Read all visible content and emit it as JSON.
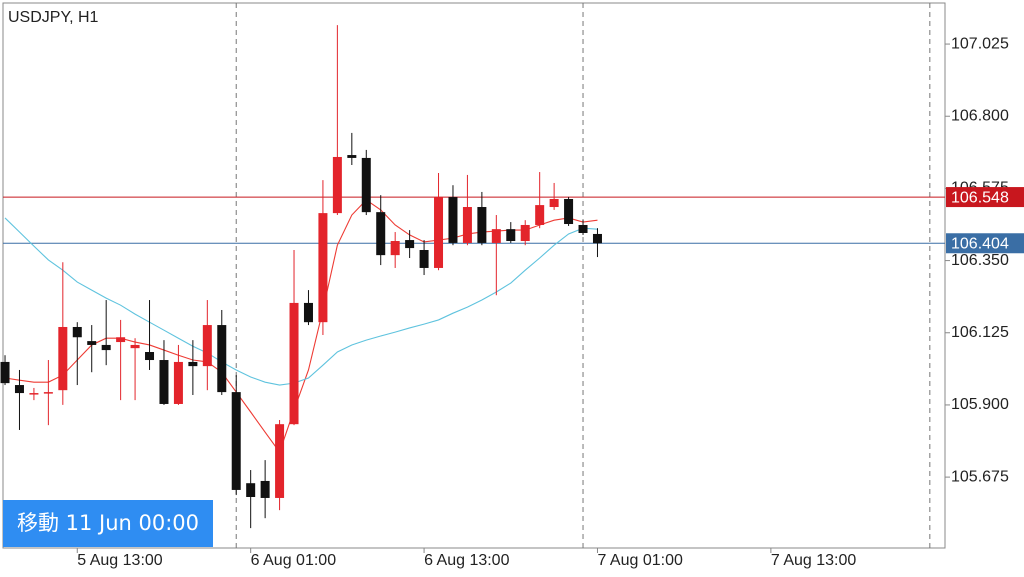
{
  "chart_data": {
    "type": "candlestick",
    "title": "USDJPY, H1",
    "x": [
      0,
      1,
      2,
      3,
      4,
      5,
      6,
      7,
      8,
      9,
      10,
      11,
      12,
      13,
      14,
      15,
      16,
      17,
      18,
      19,
      20,
      21,
      22,
      23,
      24,
      25,
      26,
      27,
      28,
      29,
      30,
      31,
      32,
      33,
      34,
      35,
      36,
      37,
      38,
      39,
      40,
      41
    ],
    "open": [
      106.034,
      105.962,
      105.937,
      105.937,
      105.946,
      106.143,
      106.099,
      106.087,
      106.096,
      106.077,
      106.065,
      106.04,
      105.903,
      106.034,
      106.021,
      106.149,
      105.94,
      105.656,
      105.663,
      105.61,
      105.84,
      106.218,
      106.158,
      106.498,
      106.679,
      106.67,
      106.501,
      106.367,
      106.414,
      106.383,
      106.327,
      106.548,
      106.405,
      106.517,
      106.405,
      106.448,
      106.411,
      106.461,
      106.517,
      106.542,
      106.461,
      106.433
    ],
    "high": [
      106.055,
      106.009,
      105.953,
      106.04,
      106.345,
      106.158,
      106.149,
      106.227,
      106.165,
      106.108,
      106.227,
      106.102,
      106.087,
      106.102,
      106.227,
      106.196,
      105.993,
      105.697,
      105.728,
      105.853,
      106.383,
      106.258,
      106.601,
      107.084,
      106.748,
      106.695,
      106.554,
      106.439,
      106.445,
      106.414,
      106.623,
      106.585,
      106.617,
      106.564,
      106.492,
      106.47,
      106.476,
      106.626,
      106.592,
      106.548,
      106.476,
      106.451
    ],
    "low": [
      105.962,
      105.822,
      105.915,
      105.837,
      105.9,
      105.962,
      106.002,
      106.024,
      105.915,
      105.915,
      106.009,
      105.9,
      105.9,
      105.931,
      105.946,
      105.931,
      105.619,
      105.516,
      105.547,
      105.572,
      105.837,
      106.149,
      106.118,
      106.492,
      106.648,
      106.492,
      106.336,
      106.327,
      106.358,
      106.305,
      106.32,
      106.398,
      106.398,
      106.398,
      106.242,
      106.405,
      106.398,
      106.451,
      106.508,
      106.458,
      106.43,
      106.361
    ],
    "close": [
      105.968,
      105.937,
      105.937,
      105.94,
      106.143,
      106.111,
      106.087,
      106.071,
      106.111,
      106.087,
      106.04,
      105.903,
      106.034,
      106.021,
      106.149,
      105.94,
      105.635,
      105.613,
      105.61,
      105.84,
      106.218,
      106.158,
      106.498,
      106.673,
      106.67,
      106.501,
      106.367,
      106.411,
      106.389,
      106.327,
      106.548,
      106.405,
      106.517,
      106.405,
      106.448,
      106.411,
      106.461,
      106.523,
      106.542,
      106.464,
      106.436,
      106.404
    ],
    "up_color": "#e3242b",
    "down_color": "#111111",
    "series": [
      {
        "color": "#ee3b34",
        "values": [
          105.984,
          105.977,
          105.971,
          105.971,
          105.993,
          106.04,
          106.087,
          106.108,
          106.108,
          106.096,
          106.087,
          106.071,
          106.055,
          106.04,
          106.034,
          106.002,
          105.94,
          105.878,
          105.815,
          105.753,
          105.884,
          106.009,
          106.196,
          106.398,
          106.492,
          106.539,
          106.508,
          106.461,
          106.43,
          106.408,
          106.414,
          106.42,
          106.433,
          106.439,
          106.442,
          106.445,
          106.445,
          106.461,
          106.476,
          106.483,
          106.47,
          106.476
        ]
      },
      {
        "color": "#5fc3de",
        "values": [
          106.483,
          106.439,
          106.395,
          106.352,
          106.32,
          106.283,
          106.258,
          106.233,
          106.211,
          106.183,
          106.158,
          106.133,
          106.108,
          106.083,
          106.062,
          106.034,
          106.009,
          105.987,
          105.971,
          105.962,
          105.968,
          105.984,
          106.024,
          106.065,
          106.087,
          106.102,
          106.115,
          106.127,
          106.14,
          106.152,
          106.165,
          106.186,
          106.205,
          106.227,
          106.252,
          106.28,
          106.32,
          106.358,
          106.398,
          106.433,
          106.451,
          106.448
        ]
      }
    ],
    "levels": [
      {
        "value": 106.548,
        "color": "#c8171e"
      },
      {
        "value": 106.404,
        "color": "#3a6ea5"
      }
    ],
    "separators": [
      16,
      40,
      64
    ],
    "xlim": [
      -0.14,
      65.05
    ],
    "ylim": [
      105.454,
      107.153
    ],
    "xticks": [
      {
        "value": 5,
        "label": "5 Aug 13:00"
      },
      {
        "value": 17,
        "label": "6 Aug 01:00"
      },
      {
        "value": 29,
        "label": "6 Aug 13:00"
      },
      {
        "value": 41,
        "label": "7 Aug 01:00"
      },
      {
        "value": 53,
        "label": "7 Aug 13:00"
      }
    ],
    "yticks": [
      107.025,
      {
        "value": 106.8,
        "label": "106.800"
      },
      106.575,
      {
        "value": 106.35,
        "label": "106.350"
      },
      106.125,
      {
        "value": 105.9,
        "label": "105.900"
      },
      105.675
    ]
  },
  "ui": {
    "button": "移動 11 Jun 00:00"
  }
}
